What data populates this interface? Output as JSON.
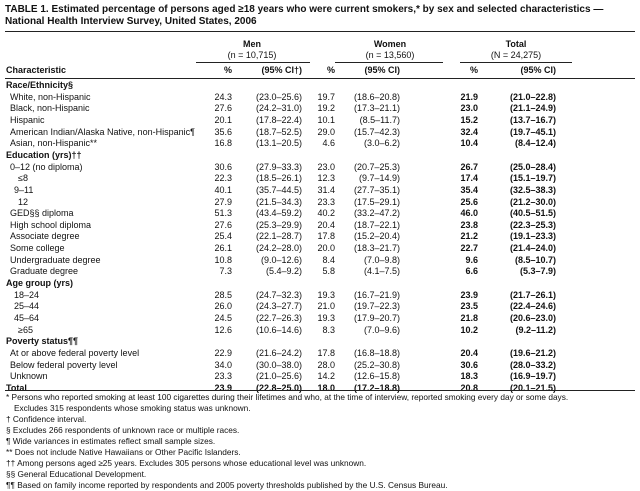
{
  "title": "TABLE 1. Estimated percentage of  persons aged ≥18 years who were current smokers,* by sex and selected characteristics — National Health Interview Survey, United States, 2006",
  "groups": [
    {
      "label": "Men",
      "n": "(n = 10,715)"
    },
    {
      "label": "Women",
      "n": "(n = 13,560)"
    },
    {
      "label": "Total",
      "n": "(N = 24,275)"
    }
  ],
  "columns": {
    "characteristic": "Characteristic",
    "pct": "%",
    "ci_men": "(95% CI†)",
    "ci": "(95% CI)"
  },
  "rows": [
    {
      "type": "header",
      "label": "Race/Ethnicity§"
    },
    {
      "label": "White, non-Hispanic",
      "indent": 1,
      "v": [
        "24.3",
        "(23.0–25.6)",
        "19.7",
        "(18.6–20.8)",
        "21.9",
        "(21.0–22.8)"
      ]
    },
    {
      "label": "Black, non-Hispanic",
      "indent": 1,
      "v": [
        "27.6",
        "(24.2–31.0)",
        "19.2",
        "(17.3–21.1)",
        "23.0",
        "(21.1–24.9)"
      ]
    },
    {
      "label": "Hispanic",
      "indent": 1,
      "v": [
        "20.1",
        "(17.8–22.4)",
        "10.1",
        "(8.5–11.7)",
        "15.2",
        "(13.7–16.7)"
      ]
    },
    {
      "label": "American Indian/Alaska Native, non-Hispanic¶",
      "indent": 1,
      "v": [
        "35.6",
        "(18.7–52.5)",
        "29.0",
        "(15.7–42.3)",
        "32.4",
        "(19.7–45.1)"
      ]
    },
    {
      "label": "Asian, non-Hispanic**",
      "indent": 1,
      "v": [
        "16.8",
        "(13.1–20.5)",
        "4.6",
        "(3.0–6.2)",
        "10.4",
        "(8.4–12.4)"
      ]
    },
    {
      "type": "header",
      "label": "Education (yrs)††"
    },
    {
      "label": "0–12 (no diploma)",
      "indent": 1,
      "v": [
        "30.6",
        "(27.9–33.3)",
        "23.0",
        "(20.7–25.3)",
        "26.7",
        "(25.0–28.4)"
      ]
    },
    {
      "label": "≤8",
      "indent": 3,
      "v": [
        "22.3",
        "(18.5–26.1)",
        "12.3",
        "(9.7–14.9)",
        "17.4",
        "(15.1–19.7)"
      ]
    },
    {
      "label": "9–11",
      "indent": 2,
      "v": [
        "40.1",
        "(35.7–44.5)",
        "31.4",
        "(27.7–35.1)",
        "35.4",
        "(32.5–38.3)"
      ]
    },
    {
      "label": "12",
      "indent": 3,
      "v": [
        "27.9",
        "(21.5–34.3)",
        "23.3",
        "(17.5–29.1)",
        "25.6",
        "(21.2–30.0)"
      ]
    },
    {
      "label": "GED§§ diploma",
      "indent": 1,
      "v": [
        "51.3",
        "(43.4–59.2)",
        "40.2",
        "(33.2–47.2)",
        "46.0",
        "(40.5–51.5)"
      ]
    },
    {
      "label": "High school diploma",
      "indent": 1,
      "v": [
        "27.6",
        "(25.3–29.9)",
        "20.4",
        "(18.7–22.1)",
        "23.8",
        "(22.3–25.3)"
      ]
    },
    {
      "label": "Associate degree",
      "indent": 1,
      "v": [
        "25.4",
        "(22.1–28.7)",
        "17.8",
        "(15.2–20.4)",
        "21.2",
        "(19.1–23.3)"
      ]
    },
    {
      "label": "Some college",
      "indent": 1,
      "v": [
        "26.1",
        "(24.2–28.0)",
        "20.0",
        "(18.3–21.7)",
        "22.7",
        "(21.4–24.0)"
      ]
    },
    {
      "label": "Undergraduate degree",
      "indent": 1,
      "v": [
        "10.8",
        "(9.0–12.6)",
        "8.4",
        "(7.0–9.8)",
        "9.6",
        "(8.5–10.7)"
      ]
    },
    {
      "label": "Graduate degree",
      "indent": 1,
      "v": [
        "7.3",
        "(5.4–9.2)",
        "5.8",
        "(4.1–7.5)",
        "6.6",
        "(5.3–7.9)"
      ]
    },
    {
      "type": "header",
      "label": "Age group (yrs)"
    },
    {
      "label": "18–24",
      "indent": 2,
      "v": [
        "28.5",
        "(24.7–32.3)",
        "19.3",
        "(16.7–21.9)",
        "23.9",
        "(21.7–26.1)"
      ]
    },
    {
      "label": "25–44",
      "indent": 2,
      "v": [
        "26.0",
        "(24.3–27.7)",
        "21.0",
        "(19.7–22.3)",
        "23.5",
        "(22.4–24.6)"
      ]
    },
    {
      "label": "45–64",
      "indent": 2,
      "v": [
        "24.5",
        "(22.7–26.3)",
        "19.3",
        "(17.9–20.7)",
        "21.8",
        "(20.6–23.0)"
      ]
    },
    {
      "label": "≥65",
      "indent": 3,
      "v": [
        "12.6",
        "(10.6–14.6)",
        "8.3",
        "(7.0–9.6)",
        "10.2",
        "(9.2–11.2)"
      ]
    },
    {
      "type": "header",
      "label": "Poverty status¶¶"
    },
    {
      "label": "At or above federal poverty level",
      "indent": 1,
      "v": [
        "22.9",
        "(21.6–24.2)",
        "17.8",
        "(16.8–18.8)",
        "20.4",
        "(19.6–21.2)"
      ]
    },
    {
      "label": "Below federal poverty level",
      "indent": 1,
      "v": [
        "34.0",
        "(30.0–38.0)",
        "28.0",
        "(25.2–30.8)",
        "30.6",
        "(28.0–33.2)"
      ]
    },
    {
      "label": "Unknown",
      "indent": 1,
      "v": [
        "23.3",
        "(21.0–25.6)",
        "14.2",
        "(12.6–15.8)",
        "18.3",
        "(16.9–19.7)"
      ]
    },
    {
      "type": "total",
      "label": "Total",
      "v": [
        "23.9",
        "(22.8–25.0)",
        "18.0",
        "(17.2–18.8)",
        "20.8",
        "(20.1–21.5)"
      ]
    }
  ],
  "footnotes": [
    "* Persons who reported smoking at least 100 cigarettes during their lifetimes and who, at the time of interview, reported smoking every day or some days.",
    "Excludes 315 respondents whose smoking status was unknown.",
    "† Confidence interval.",
    "§ Excludes 266 respondents of unknown race or multiple races.",
    "¶ Wide variances in estimates reflect small sample sizes.",
    "** Does not include Native Hawaiians or Other Pacific Islanders.",
    "†† Among persons aged ≥25 years. Excludes 305 persons whose educational level was unknown.",
    "§§ General Educational Development.",
    "¶¶ Based on family income reported by respondents and 2005 poverty thresholds published by the U.S. Census Bureau."
  ]
}
